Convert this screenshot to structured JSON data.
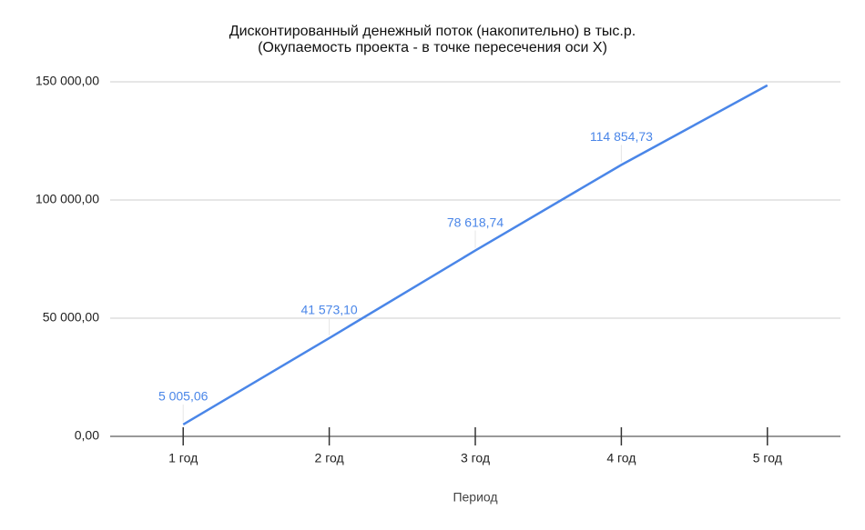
{
  "chart_data": {
    "type": "line",
    "title": "Дисконтированный денежный поток (накопительно) в тыс.р.",
    "subtitle": "(Окупаемость проекта - в точке пересечения оси X)",
    "x_label": "Период",
    "categories": [
      "1 год",
      "2 год",
      "3 год",
      "4 год",
      "5 год"
    ],
    "values": [
      5005.06,
      41573.1,
      78618.74,
      114854.73,
      148500
    ],
    "value_labels": [
      "5 005,06",
      "41 573,10",
      "78 618,74",
      "114 854,73",
      null
    ],
    "color": "#4a86e8",
    "ylim": [
      0,
      150000
    ],
    "yticks": [
      {
        "value": 0,
        "label": "0,00"
      },
      {
        "value": 50000,
        "label": "50 000,00"
      },
      {
        "value": 100000,
        "label": "100 000,00"
      },
      {
        "value": 150000,
        "label": "150 000,00"
      }
    ],
    "grid": true
  }
}
